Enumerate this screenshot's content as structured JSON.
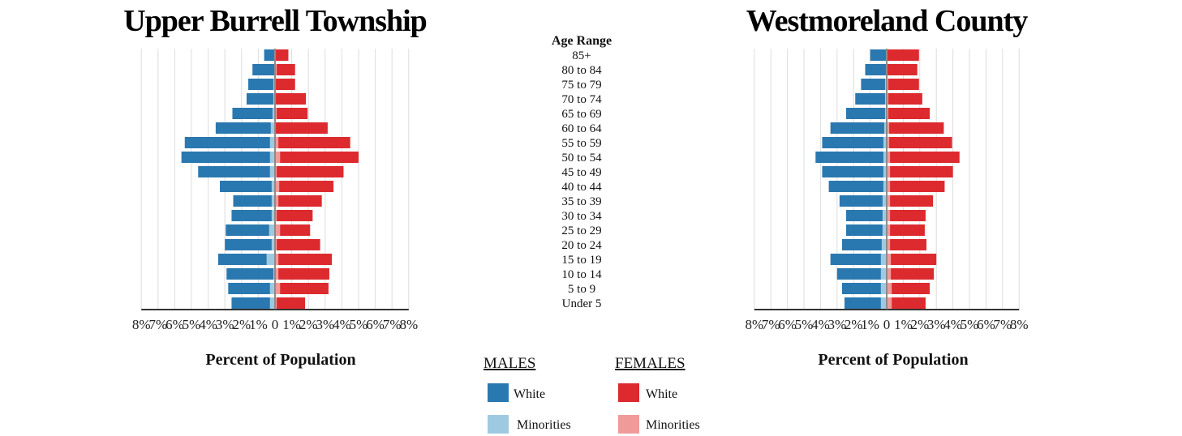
{
  "colors": {
    "male_white": "#2a78b0",
    "male_minority": "#9ecae1",
    "female_white": "#dd2a2e",
    "female_minority": "#f09a9a",
    "grid": "#dddddd",
    "axis": "#333333"
  },
  "legend": {
    "males_title": "MALES",
    "females_title": "FEMALES",
    "white_label": "White",
    "minorities_label": "Minorities"
  },
  "chart_data": [
    {
      "type": "bar",
      "title": "Upper Burrell Township",
      "xlabel": "Percent of Population",
      "age_header": "Age Range",
      "xlim": [
        -8,
        8
      ],
      "x_ticks": [
        "8%",
        "7%",
        "6%",
        "5%",
        "4%",
        "3%",
        "2%",
        "1%",
        "0",
        "1%",
        "2%",
        "3%",
        "4%",
        "5%",
        "6%",
        "7%",
        "8%"
      ],
      "categories": [
        "85+",
        "80 to 84",
        "75 to 79",
        "70 to 74",
        "65 to 69",
        "60 to 64",
        "55 to 59",
        "50 to 54",
        "45 to 49",
        "40 to 44",
        "35 to 39",
        "30 to 34",
        "25 to 29",
        "20 to 24",
        "15 to 19",
        "10 to 14",
        "5 to 9",
        "Under 5"
      ],
      "series": [
        {
          "name": "White",
          "group": "MALES",
          "values": [
            0.6,
            1.3,
            1.5,
            1.6,
            2.4,
            3.3,
            5.1,
            5.3,
            4.3,
            3.1,
            2.3,
            2.4,
            2.6,
            2.8,
            2.9,
            2.8,
            2.5,
            2.3
          ]
        },
        {
          "name": "Minorities",
          "group": "MALES",
          "values": [
            0.05,
            0.05,
            0.1,
            0.1,
            0.15,
            0.25,
            0.3,
            0.3,
            0.3,
            0.2,
            0.2,
            0.2,
            0.35,
            0.2,
            0.5,
            0.1,
            0.3,
            0.3
          ]
        },
        {
          "name": "White",
          "group": "FEMALES",
          "values": [
            0.75,
            1.1,
            1.15,
            1.8,
            1.85,
            3.1,
            4.3,
            4.7,
            4.0,
            3.25,
            2.6,
            2.15,
            1.8,
            2.6,
            3.2,
            3.05,
            2.9,
            1.7
          ]
        },
        {
          "name": "Minorities",
          "group": "FEMALES",
          "values": [
            0.05,
            0.1,
            0.05,
            0.05,
            0.1,
            0.05,
            0.2,
            0.3,
            0.1,
            0.25,
            0.2,
            0.1,
            0.3,
            0.1,
            0.2,
            0.2,
            0.3,
            0.1
          ]
        }
      ]
    },
    {
      "type": "bar",
      "title": "Westmoreland County",
      "xlabel": "Percent of Population",
      "xlim": [
        -8,
        8
      ],
      "x_ticks": [
        "8%",
        "7%",
        "6%",
        "5%",
        "4%",
        "3%",
        "2%",
        "1%",
        "0",
        "1%",
        "2%",
        "3%",
        "4%",
        "5%",
        "6%",
        "7%",
        "8%"
      ],
      "categories": [
        "85+",
        "80 to 84",
        "75 to 79",
        "70 to 74",
        "65 to 69",
        "60 to 64",
        "55 to 59",
        "50 to 54",
        "45 to 49",
        "40 to 44",
        "35 to 39",
        "30 to 34",
        "25 to 29",
        "20 to 24",
        "15 to 19",
        "10 to 14",
        "5 to 9",
        "Under 5"
      ],
      "series": [
        {
          "name": "White",
          "group": "MALES",
          "values": [
            0.95,
            1.25,
            1.45,
            1.8,
            2.35,
            3.25,
            3.7,
            4.1,
            3.7,
            3.3,
            2.6,
            2.2,
            2.2,
            2.4,
            3.05,
            2.65,
            2.35,
            2.2
          ]
        },
        {
          "name": "Minorities",
          "group": "MALES",
          "values": [
            0.05,
            0.05,
            0.1,
            0.1,
            0.1,
            0.15,
            0.2,
            0.2,
            0.2,
            0.2,
            0.25,
            0.25,
            0.25,
            0.3,
            0.35,
            0.35,
            0.35,
            0.35
          ]
        },
        {
          "name": "White",
          "group": "FEMALES",
          "values": [
            1.9,
            1.8,
            1.85,
            2.05,
            2.5,
            3.3,
            3.8,
            4.2,
            3.8,
            3.3,
            2.6,
            2.15,
            2.1,
            2.2,
            2.75,
            2.6,
            2.3,
            2.05
          ]
        },
        {
          "name": "Minorities",
          "group": "FEMALES",
          "values": [
            0.05,
            0.05,
            0.1,
            0.1,
            0.1,
            0.15,
            0.15,
            0.2,
            0.2,
            0.2,
            0.2,
            0.2,
            0.2,
            0.2,
            0.25,
            0.25,
            0.3,
            0.3
          ]
        }
      ]
    }
  ]
}
